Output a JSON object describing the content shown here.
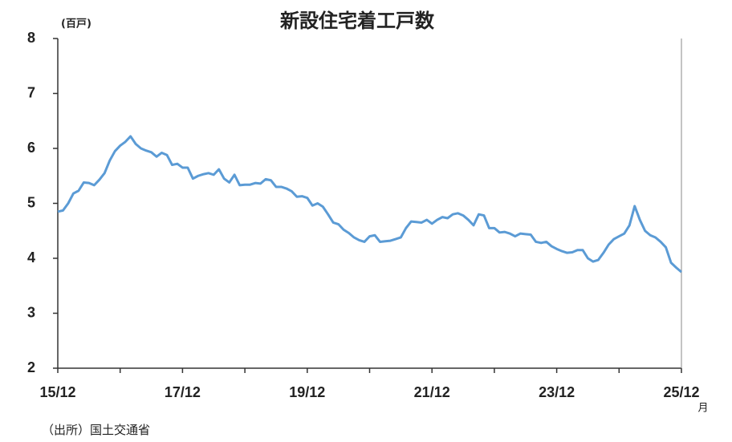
{
  "chart_data": {
    "type": "line",
    "title": "新設住宅着工戸数",
    "y_label": "(百戸)",
    "x_note": "月",
    "source": "（出所）国土交通省",
    "categories": [
      "15/12",
      null,
      null,
      null,
      null,
      null,
      null,
      null,
      null,
      null,
      null,
      null,
      null,
      null,
      null,
      null,
      null,
      null,
      null,
      null,
      null,
      null,
      null,
      null,
      "17/12",
      null,
      null,
      null,
      null,
      null,
      null,
      null,
      null,
      null,
      null,
      null,
      null,
      null,
      null,
      null,
      null,
      null,
      null,
      null,
      null,
      null,
      null,
      null,
      "19/12",
      null,
      null,
      null,
      null,
      null,
      null,
      null,
      null,
      null,
      null,
      null,
      null,
      null,
      null,
      null,
      null,
      null,
      null,
      null,
      null,
      null,
      null,
      null,
      "21/12",
      null,
      null,
      null,
      null,
      null,
      null,
      null,
      null,
      null,
      null,
      null,
      null,
      null,
      null,
      null,
      null,
      null,
      null,
      null,
      null,
      null,
      null,
      null,
      "23/12",
      null,
      null,
      null,
      null,
      null,
      null,
      null,
      null,
      null,
      null,
      null,
      null,
      null,
      null,
      null,
      null,
      null,
      null,
      null,
      null,
      null,
      null,
      null,
      "25/12"
    ],
    "values": [
      4.85,
      4.87,
      5.0,
      5.18,
      5.23,
      5.38,
      5.37,
      5.33,
      5.43,
      5.55,
      5.78,
      5.95,
      6.05,
      6.12,
      6.22,
      6.08,
      6.0,
      5.96,
      5.93,
      5.85,
      5.92,
      5.88,
      5.7,
      5.72,
      5.65,
      5.65,
      5.45,
      5.5,
      5.53,
      5.55,
      5.52,
      5.62,
      5.45,
      5.38,
      5.52,
      5.33,
      5.34,
      5.34,
      5.37,
      5.36,
      5.44,
      5.42,
      5.3,
      5.3,
      5.27,
      5.22,
      5.12,
      5.13,
      5.1,
      4.96,
      5.0,
      4.94,
      4.8,
      4.65,
      4.62,
      4.52,
      4.46,
      4.38,
      4.33,
      4.3,
      4.4,
      4.42,
      4.3,
      4.31,
      4.32,
      4.35,
      4.38,
      4.55,
      4.67,
      4.66,
      4.65,
      4.7,
      4.63,
      4.7,
      4.75,
      4.73,
      4.8,
      4.82,
      4.78,
      4.7,
      4.6,
      4.8,
      4.78,
      4.55,
      4.55,
      4.47,
      4.48,
      4.45,
      4.4,
      4.45,
      4.44,
      4.43,
      4.3,
      4.28,
      4.3,
      4.22,
      4.17,
      4.13,
      4.1,
      4.11,
      4.15,
      4.15,
      4.0,
      3.94,
      3.97,
      4.1,
      4.25,
      4.35,
      4.4,
      4.45,
      4.6,
      4.95,
      4.7,
      4.5,
      4.42,
      4.38,
      4.3,
      4.2,
      3.92,
      3.83,
      3.75
    ],
    "color": "#5b9bd5",
    "ylim": [
      2,
      8
    ],
    "yticks": [
      2,
      3,
      4,
      5,
      6,
      7,
      8
    ],
    "grid": false
  }
}
